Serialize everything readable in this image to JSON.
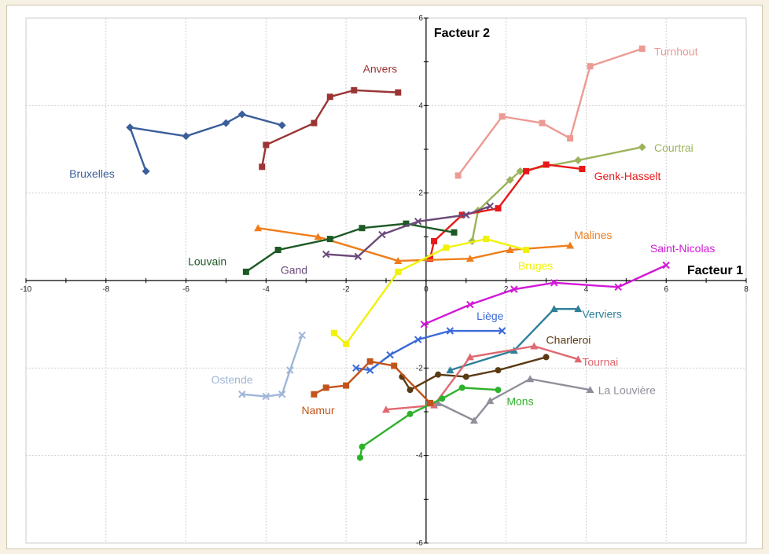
{
  "chart_data": {
    "type": "line",
    "xlabel": "Facteur 1",
    "ylabel": "Facteur 2",
    "xlim": [
      -10,
      8
    ],
    "ylim": [
      -6,
      6
    ],
    "xticks": [
      -10,
      -8,
      -6,
      -4,
      -2,
      0,
      2,
      4,
      6,
      8
    ],
    "yticks": [
      -6,
      -4,
      -2,
      2,
      4,
      6
    ],
    "grid": true,
    "series": [
      {
        "name": "Bruxelles",
        "color": "#3a5f9a",
        "marker": "diamond",
        "x": [
          -7.0,
          -7.4,
          -6.0,
          -5.0,
          -4.6,
          -3.6
        ],
        "y": [
          2.5,
          3.5,
          3.3,
          3.6,
          3.8,
          3.55
        ]
      },
      {
        "name": "Anvers",
        "color": "#9b3434",
        "marker": "square",
        "x": [
          -4.1,
          -4.0,
          -2.8,
          -2.4,
          -1.8,
          -0.7
        ],
        "y": [
          2.6,
          3.1,
          3.6,
          4.2,
          4.35,
          4.3
        ]
      },
      {
        "name": "Turnhout",
        "color": "#ec9a93",
        "marker": "square",
        "x": [
          0.8,
          1.9,
          2.9,
          3.6,
          4.1,
          5.4
        ],
        "y": [
          2.4,
          3.75,
          3.6,
          3.25,
          4.9,
          5.3
        ]
      },
      {
        "name": "Courtrai",
        "color": "#9bb35a",
        "marker": "diamond",
        "x": [
          1.15,
          1.3,
          2.1,
          2.35,
          3.8,
          5.4
        ],
        "y": [
          0.9,
          1.6,
          2.3,
          2.5,
          2.75,
          3.05
        ]
      },
      {
        "name": "Genk-Hasselt",
        "color": "#e81818",
        "marker": "square",
        "x": [
          0.1,
          0.2,
          0.9,
          1.8,
          2.5,
          3.0,
          3.9
        ],
        "y": [
          0.5,
          0.9,
          1.5,
          1.65,
          2.5,
          2.65,
          2.55
        ]
      },
      {
        "name": "Malines",
        "color": "#ef7d1a",
        "marker": "triangle",
        "x": [
          -4.2,
          -2.7,
          -0.7,
          1.1,
          2.1,
          3.6
        ],
        "y": [
          1.2,
          1.0,
          0.45,
          0.5,
          0.7,
          0.8
        ]
      },
      {
        "name": "Louvain",
        "color": "#1d5a25",
        "marker": "square",
        "x": [
          -4.5,
          -3.7,
          -2.4,
          -1.6,
          -0.5,
          0.7
        ],
        "y": [
          0.2,
          0.7,
          0.95,
          1.2,
          1.3,
          1.1
        ]
      },
      {
        "name": "Gand",
        "color": "#6b4a7a",
        "marker": "cross",
        "x": [
          -2.5,
          -1.7,
          -1.1,
          -0.2,
          1.0,
          1.6
        ],
        "y": [
          0.6,
          0.55,
          1.05,
          1.35,
          1.5,
          1.7
        ]
      },
      {
        "name": "Bruges",
        "color": "#f1f10a",
        "marker": "square",
        "x": [
          -2.3,
          -2.0,
          -0.7,
          0.5,
          1.5,
          2.5
        ],
        "y": [
          -1.2,
          -1.45,
          0.2,
          0.75,
          0.95,
          0.7
        ]
      },
      {
        "name": "Saint-Nicolas",
        "color": "#d218d8",
        "marker": "cross",
        "x": [
          -0.05,
          1.1,
          2.2,
          3.2,
          4.8,
          6.0
        ],
        "y": [
          -1.0,
          -0.55,
          -0.2,
          -0.05,
          -0.15,
          0.35
        ]
      },
      {
        "name": "Liège",
        "color": "#3a6ad8",
        "marker": "cross",
        "x": [
          -1.75,
          -1.4,
          -0.9,
          -0.2,
          0.6,
          1.9
        ],
        "y": [
          -2.0,
          -2.05,
          -1.7,
          -1.35,
          -1.15,
          -1.15
        ]
      },
      {
        "name": "Verviers",
        "color": "#2e7f9a",
        "marker": "triangle",
        "x": [
          0.6,
          2.2,
          3.2,
          3.8
        ],
        "y": [
          -2.05,
          -1.6,
          -0.65,
          -0.65
        ]
      },
      {
        "name": "Charleroi",
        "color": "#5a3a12",
        "marker": "circle",
        "x": [
          -0.6,
          -0.4,
          0.3,
          1.0,
          1.8,
          3.0
        ],
        "y": [
          -2.2,
          -2.5,
          -2.15,
          -2.2,
          -2.05,
          -1.75
        ]
      },
      {
        "name": "Tournai",
        "color": "#e06870",
        "marker": "triangle",
        "x": [
          -1.0,
          0.2,
          1.1,
          2.7,
          3.8
        ],
        "y": [
          -2.95,
          -2.85,
          -1.75,
          -1.5,
          -1.8
        ]
      },
      {
        "name": "La Louvière",
        "color": "#8f8f9a",
        "marker": "triangle",
        "x": [
          0.3,
          1.2,
          1.6,
          2.6,
          4.1
        ],
        "y": [
          -2.8,
          -3.2,
          -2.75,
          -2.25,
          -2.5
        ]
      },
      {
        "name": "Mons",
        "color": "#2db22a",
        "marker": "circle",
        "x": [
          -1.65,
          -1.6,
          -0.4,
          0.4,
          0.9,
          1.8
        ],
        "y": [
          -4.05,
          -3.8,
          -3.05,
          -2.7,
          -2.45,
          -2.5
        ]
      },
      {
        "name": "Namur",
        "color": "#c2531a",
        "marker": "square",
        "x": [
          -2.8,
          -2.5,
          -2.0,
          -1.4,
          -0.8,
          0.1
        ],
        "y": [
          -2.6,
          -2.45,
          -2.4,
          -1.85,
          -1.95,
          -2.8
        ]
      },
      {
        "name": "Ostende",
        "color": "#9fb6d8",
        "marker": "cross",
        "x": [
          -4.6,
          -4.0,
          -3.6,
          -3.4,
          -3.1
        ],
        "y": [
          -2.6,
          -2.65,
          -2.6,
          -2.05,
          -1.25
        ]
      }
    ],
    "labels": [
      {
        "text": "Bruxelles",
        "x": -8.35,
        "y": 2.35,
        "anchor": "middle",
        "series": 0
      },
      {
        "text": "Anvers",
        "x": -1.15,
        "y": 4.75,
        "anchor": "middle",
        "series": 1
      },
      {
        "text": "Turnhout",
        "x": 5.7,
        "y": 5.15,
        "anchor": "start",
        "series": 2
      },
      {
        "text": "Courtrai",
        "x": 5.7,
        "y": 2.95,
        "anchor": "start",
        "series": 3
      },
      {
        "text": "Genk-Hasselt",
        "x": 4.2,
        "y": 2.3,
        "anchor": "start",
        "series": 4
      },
      {
        "text": "Malines",
        "x": 3.7,
        "y": 0.95,
        "anchor": "start",
        "series": 5
      },
      {
        "text": "Louvain",
        "x": -5.95,
        "y": 0.35,
        "anchor": "start",
        "series": 6
      },
      {
        "text": "Gand",
        "x": -3.3,
        "y": 0.15,
        "anchor": "middle",
        "series": 7
      },
      {
        "text": "Bruges",
        "x": 2.3,
        "y": 0.25,
        "anchor": "start",
        "series": 8
      },
      {
        "text": "Saint-Nicolas",
        "x": 5.6,
        "y": 0.65,
        "anchor": "start",
        "series": 9
      },
      {
        "text": "Liège",
        "x": 1.6,
        "y": -0.9,
        "anchor": "middle",
        "series": 10
      },
      {
        "text": "Verviers",
        "x": 3.9,
        "y": -0.85,
        "anchor": "start",
        "series": 11
      },
      {
        "text": "Charleroi",
        "x": 3.0,
        "y": -1.45,
        "anchor": "start",
        "series": 12
      },
      {
        "text": "Tournai",
        "x": 3.9,
        "y": -1.95,
        "anchor": "start",
        "series": 13
      },
      {
        "text": "La Louvière",
        "x": 4.3,
        "y": -2.6,
        "anchor": "start",
        "series": 14
      },
      {
        "text": "Mons",
        "x": 2.35,
        "y": -2.85,
        "anchor": "middle",
        "series": 15
      },
      {
        "text": "Namur",
        "x": -2.7,
        "y": -3.05,
        "anchor": "middle",
        "series": 16
      },
      {
        "text": "Ostende",
        "x": -4.85,
        "y": -2.35,
        "anchor": "middle",
        "series": 17
      }
    ]
  }
}
